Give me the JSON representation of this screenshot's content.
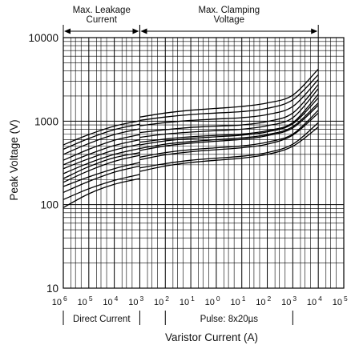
{
  "chart_data": {
    "type": "line",
    "xscale": "log",
    "yscale": "log",
    "xlim": [
      1e-06,
      100000
    ],
    "ylim": [
      10,
      10000
    ],
    "xlabel": "Varistor Current (A)",
    "ylabel": "Peak Voltage (V)",
    "y_ticks": [
      "10",
      "100",
      "1000",
      "10000"
    ],
    "x_ticks": [
      {
        "base": "10",
        "exp": "6"
      },
      {
        "base": "10",
        "exp": "5"
      },
      {
        "base": "10",
        "exp": "4"
      },
      {
        "base": "10",
        "exp": "3"
      },
      {
        "base": "10",
        "exp": "2"
      },
      {
        "base": "10",
        "exp": "1"
      },
      {
        "base": "10",
        "exp": "0"
      },
      {
        "base": "10",
        "exp": "1"
      },
      {
        "base": "10",
        "exp": "2"
      },
      {
        "base": "10",
        "exp": "3"
      },
      {
        "base": "10",
        "exp": "4"
      },
      {
        "base": "10",
        "exp": "5"
      }
    ],
    "top_regions": [
      {
        "lines": [
          "Max. Leakage",
          "Current"
        ],
        "from": 1e-06,
        "to": 0.001
      },
      {
        "lines": [
          "Max. Clamping",
          "Voltage"
        ],
        "from": 0.001,
        "to": 10000
      }
    ],
    "bottom_regions": [
      {
        "label": "Direct Current",
        "from": 1e-06,
        "to": 0.001
      },
      {
        "label": "Pulse: 8x20µs",
        "from": 0.01,
        "to": 1000
      }
    ],
    "grid": true,
    "series": [
      {
        "leakage": [
          [
            1e-06,
            92
          ],
          [
            1e-05,
            135
          ],
          [
            0.0001,
            175
          ],
          [
            0.001,
            205
          ]
        ],
        "clamping": [
          [
            0.001,
            250
          ],
          [
            0.01,
            290
          ],
          [
            0.1,
            320
          ],
          [
            1,
            340
          ],
          [
            10,
            360
          ],
          [
            100,
            400
          ],
          [
            1000,
            500
          ],
          [
            10000,
            850
          ]
        ]
      },
      {
        "leakage": [
          [
            1e-06,
            115
          ],
          [
            1e-05,
            155
          ],
          [
            0.0001,
            195
          ],
          [
            0.001,
            230
          ]
        ],
        "clamping": [
          [
            0.001,
            275
          ],
          [
            0.01,
            310
          ],
          [
            0.1,
            340
          ],
          [
            1,
            360
          ],
          [
            10,
            380
          ],
          [
            100,
            420
          ],
          [
            1000,
            530
          ],
          [
            10000,
            960
          ]
        ]
      },
      {
        "leakage": [
          [
            1e-06,
            140
          ],
          [
            1e-05,
            190
          ],
          [
            0.0001,
            245
          ],
          [
            0.001,
            290
          ]
        ],
        "clamping": [
          [
            0.001,
            345
          ],
          [
            0.01,
            395
          ],
          [
            0.1,
            430
          ],
          [
            1,
            455
          ],
          [
            10,
            480
          ],
          [
            100,
            530
          ],
          [
            1000,
            680
          ],
          [
            10000,
            1250
          ]
        ]
      },
      {
        "leakage": [
          [
            1e-06,
            165
          ],
          [
            1e-05,
            215
          ],
          [
            0.0001,
            270
          ],
          [
            0.001,
            320
          ]
        ],
        "clamping": [
          [
            0.001,
            370
          ],
          [
            0.01,
            420
          ],
          [
            0.1,
            455
          ],
          [
            1,
            480
          ],
          [
            10,
            505
          ],
          [
            100,
            560
          ],
          [
            1000,
            700
          ],
          [
            10000,
            1350
          ]
        ]
      },
      {
        "leakage": [
          [
            1e-06,
            185
          ],
          [
            1e-05,
            255
          ],
          [
            0.0001,
            330
          ],
          [
            0.001,
            390
          ]
        ],
        "clamping": [
          [
            0.001,
            445
          ],
          [
            0.01,
            505
          ],
          [
            0.1,
            545
          ],
          [
            1,
            575
          ],
          [
            10,
            605
          ],
          [
            100,
            670
          ],
          [
            1000,
            830
          ],
          [
            10000,
            1550
          ]
        ]
      },
      {
        "leakage": [
          [
            1e-06,
            205
          ],
          [
            1e-05,
            285
          ],
          [
            0.0001,
            365
          ],
          [
            0.001,
            420
          ]
        ],
        "clamping": [
          [
            0.001,
            470
          ],
          [
            0.01,
            530
          ],
          [
            0.1,
            570
          ],
          [
            1,
            600
          ],
          [
            10,
            630
          ],
          [
            100,
            690
          ],
          [
            1000,
            860
          ],
          [
            10000,
            1650
          ]
        ]
      },
      {
        "leakage": [
          [
            1e-06,
            235
          ],
          [
            1e-05,
            315
          ],
          [
            0.0001,
            400
          ],
          [
            0.001,
            470
          ]
        ],
        "clamping": [
          [
            0.001,
            520
          ],
          [
            0.01,
            580
          ],
          [
            0.1,
            620
          ],
          [
            1,
            650
          ],
          [
            10,
            680
          ],
          [
            100,
            745
          ],
          [
            1000,
            930
          ],
          [
            10000,
            1900
          ]
        ]
      },
      {
        "leakage": [
          [
            1e-06,
            270
          ],
          [
            1e-05,
            355
          ],
          [
            0.0001,
            450
          ],
          [
            0.001,
            530
          ]
        ],
        "clamping": [
          [
            0.001,
            560
          ],
          [
            0.01,
            610
          ],
          [
            0.1,
            650
          ],
          [
            1,
            675
          ],
          [
            10,
            700
          ],
          [
            100,
            770
          ],
          [
            1000,
            960
          ],
          [
            10000,
            2100
          ]
        ]
      },
      {
        "leakage": [
          [
            1e-06,
            300
          ],
          [
            1e-05,
            400
          ],
          [
            0.0001,
            510
          ],
          [
            0.001,
            600
          ]
        ],
        "clamping": [
          [
            0.001,
            640
          ],
          [
            0.01,
            700
          ],
          [
            0.1,
            740
          ],
          [
            1,
            770
          ],
          [
            10,
            800
          ],
          [
            100,
            880
          ],
          [
            1000,
            1100
          ],
          [
            10000,
            2450
          ]
        ]
      },
      {
        "leakage": [
          [
            1e-06,
            340
          ],
          [
            1e-05,
            460
          ],
          [
            0.0001,
            590
          ],
          [
            0.001,
            690
          ]
        ],
        "clamping": [
          [
            0.001,
            730
          ],
          [
            0.01,
            790
          ],
          [
            0.1,
            840
          ],
          [
            1,
            870
          ],
          [
            10,
            900
          ],
          [
            100,
            990
          ],
          [
            1000,
            1250
          ],
          [
            10000,
            2750
          ]
        ]
      },
      {
        "leakage": [
          [
            1e-06,
            400
          ],
          [
            1e-05,
            540
          ],
          [
            0.0001,
            690
          ],
          [
            0.001,
            810
          ]
        ],
        "clamping": [
          [
            0.001,
            880
          ],
          [
            0.01,
            960
          ],
          [
            0.1,
            1020
          ],
          [
            1,
            1060
          ],
          [
            10,
            1100
          ],
          [
            100,
            1200
          ],
          [
            1000,
            1500
          ],
          [
            10000,
            3150
          ]
        ]
      },
      {
        "leakage": [
          [
            1e-06,
            460
          ],
          [
            1e-05,
            620
          ],
          [
            0.0001,
            790
          ],
          [
            0.001,
            920
          ]
        ],
        "clamping": [
          [
            0.001,
            1020
          ],
          [
            0.01,
            1120
          ],
          [
            0.1,
            1200
          ],
          [
            1,
            1250
          ],
          [
            10,
            1300
          ],
          [
            100,
            1420
          ],
          [
            1000,
            1800
          ],
          [
            10000,
            3600
          ]
        ]
      },
      {
        "leakage": [
          [
            1e-06,
            520
          ],
          [
            1e-05,
            690
          ],
          [
            0.0001,
            870
          ],
          [
            0.001,
            1010
          ]
        ],
        "clamping": [
          [
            0.001,
            1120
          ],
          [
            0.01,
            1250
          ],
          [
            0.1,
            1350
          ],
          [
            1,
            1420
          ],
          [
            10,
            1500
          ],
          [
            100,
            1650
          ],
          [
            1000,
            2050
          ],
          [
            10000,
            4200
          ]
        ]
      }
    ]
  }
}
